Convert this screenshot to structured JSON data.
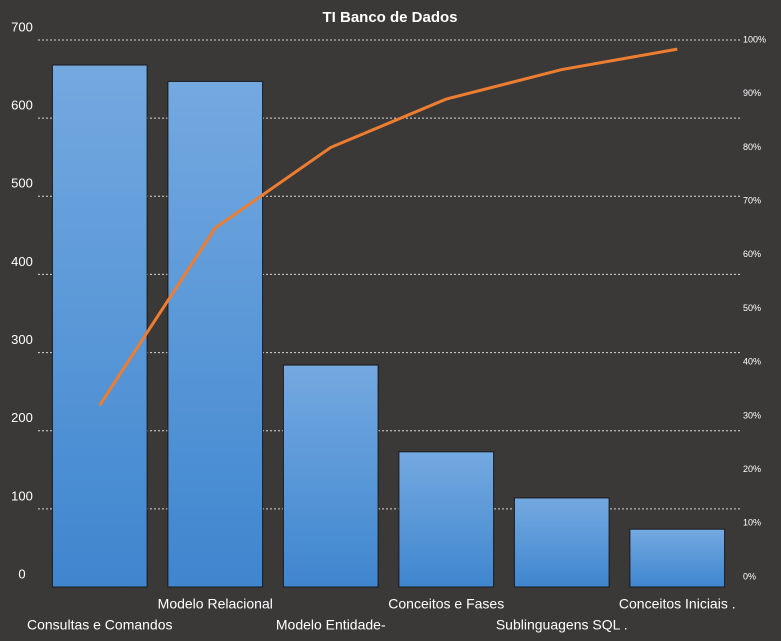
{
  "chart_data": {
    "type": "pareto",
    "title": "TI Banco de Dados",
    "categories": [
      "Consultas e Comandos",
      "Modelo Relacional",
      "Modelo Entidade-",
      "Conceitos e Fases",
      "Sublinguagens SQL .",
      "Conceitos Iniciais ."
    ],
    "series": [
      {
        "type": "bar",
        "color": "#4a90d9",
        "values": [
          668,
          647,
          284,
          173,
          114,
          74
        ]
      },
      {
        "type": "line",
        "axis": "y2",
        "color": "#ed7d31",
        "values": [
          32,
          65,
          80,
          89,
          94.5,
          98.3
        ]
      }
    ],
    "ylim": [
      0,
      700
    ],
    "yticks": [
      0,
      100,
      200,
      300,
      400,
      500,
      600,
      700
    ],
    "y2lim": [
      0,
      100
    ],
    "y2ticks": [
      {
        "value": 0,
        "label": "0%"
      },
      {
        "value": 10,
        "label": "10%"
      },
      {
        "value": 20,
        "label": "20%"
      },
      {
        "value": 30,
        "label": "30%"
      },
      {
        "value": 40,
        "label": "40%"
      },
      {
        "value": 50,
        "label": "50%"
      },
      {
        "value": 60,
        "label": "60%"
      },
      {
        "value": 70,
        "label": "70%"
      },
      {
        "value": 80,
        "label": "80%"
      },
      {
        "value": 90,
        "label": "90%"
      },
      {
        "value": 100,
        "label": "100%"
      }
    ],
    "grid": true
  }
}
